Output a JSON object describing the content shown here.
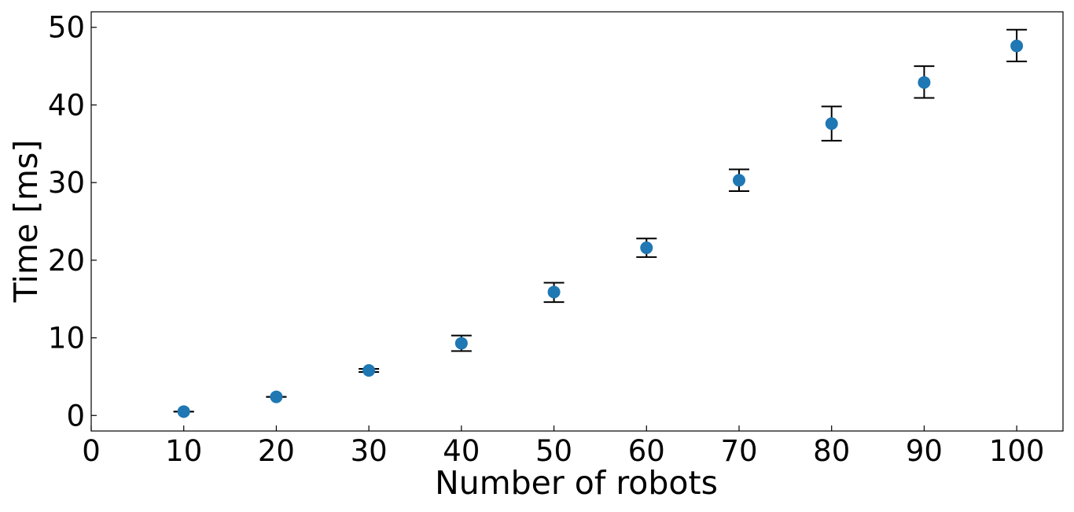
{
  "chart_data": {
    "type": "scatter",
    "title": "",
    "xlabel": "Number of robots",
    "ylabel": "Time [ms]",
    "xlim": [
      0,
      105
    ],
    "ylim": [
      -2,
      52
    ],
    "xticks": [
      "0",
      "10",
      "20",
      "30",
      "40",
      "50",
      "60",
      "70",
      "80",
      "90",
      "100"
    ],
    "yticks": [
      "0",
      "10",
      "20",
      "30",
      "40",
      "50"
    ],
    "grid": false,
    "legend": "none",
    "marker_color": "#1f77b4",
    "errorbar_color": "#000000",
    "series": [
      {
        "x": [
          10,
          20,
          30,
          40,
          50,
          60,
          70,
          80,
          90,
          100
        ],
        "y": [
          0.5,
          2.4,
          5.8,
          9.3,
          15.9,
          21.6,
          30.3,
          37.6,
          42.9,
          47.6
        ],
        "err_low": [
          0.5,
          2.4,
          5.6,
          8.3,
          14.6,
          20.4,
          28.9,
          35.4,
          40.9,
          45.6
        ],
        "err_high": [
          0.5,
          2.4,
          6.0,
          10.3,
          17.1,
          22.8,
          31.7,
          39.8,
          45.0,
          49.7
        ]
      }
    ]
  }
}
